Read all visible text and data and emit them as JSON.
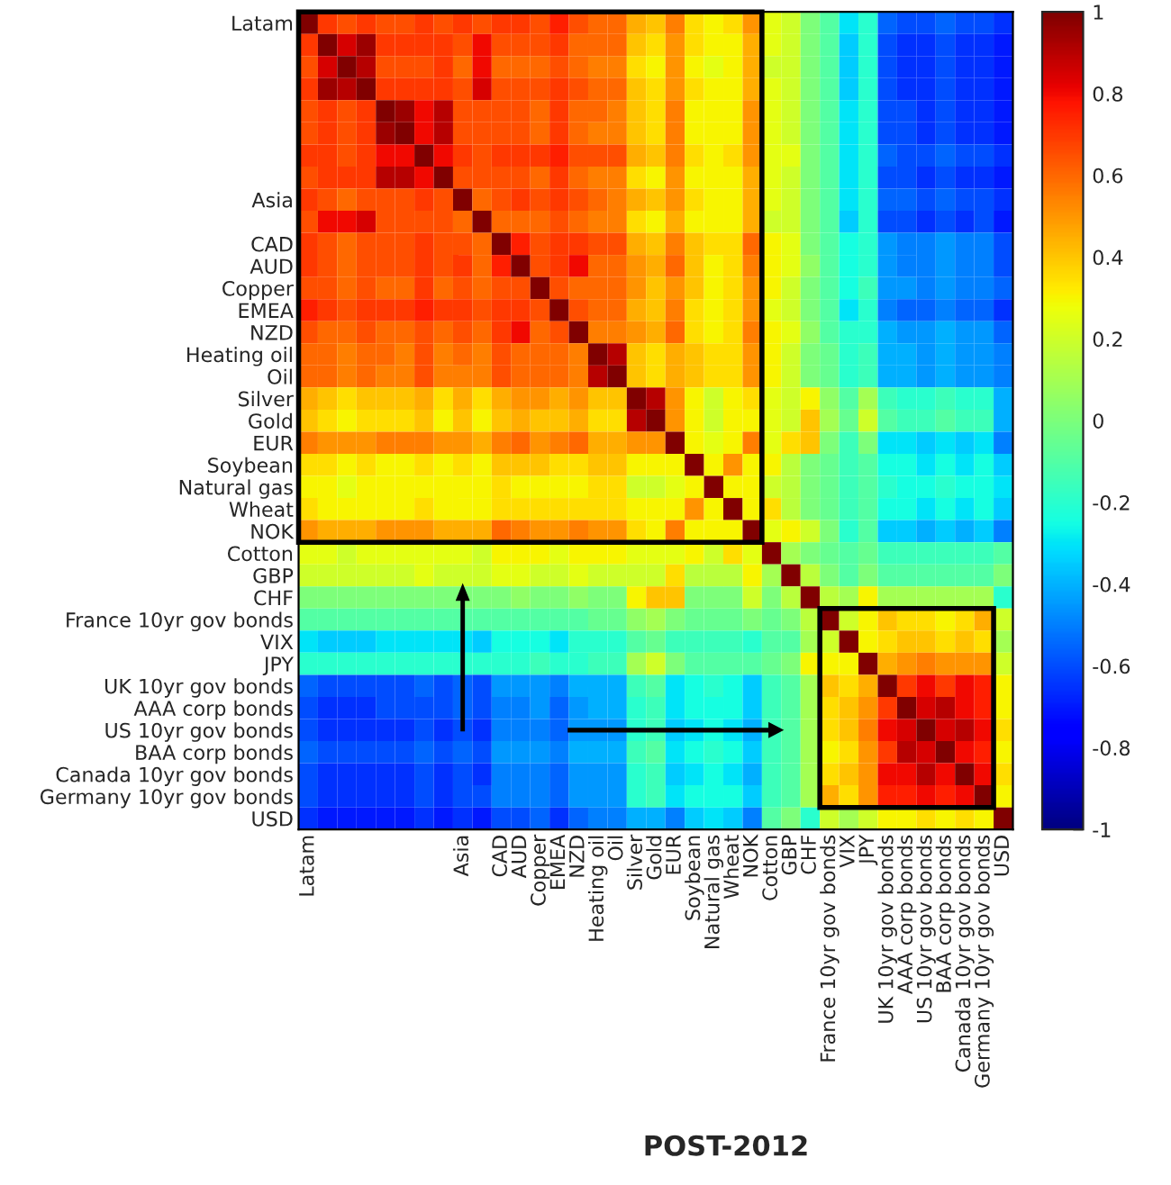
{
  "chart_data": {
    "type": "heatmap",
    "annotations": [
      "POST-2012"
    ],
    "categories": [
      "Latam",
      null,
      null,
      null,
      null,
      null,
      null,
      null,
      "Asia",
      null,
      "CAD",
      "AUD",
      "Copper",
      "EMEA",
      "NZD",
      "Heating oil",
      "Oil",
      "Silver",
      "Gold",
      "EUR",
      "Soybean",
      "Natural gas",
      "Wheat",
      "NOK",
      "Cotton",
      "GBP",
      "CHF",
      "France 10yr gov bonds",
      "VIX",
      "JPY",
      "UK 10yr gov bonds",
      "AAA corp bonds",
      "US 10yr gov bonds",
      "BAA corp bonds",
      "Canada 10yr gov bonds",
      "Germany 10yr gov bonds",
      "USD"
    ],
    "y_categories": [
      "Latam",
      null,
      null,
      null,
      null,
      null,
      null,
      null,
      "Asia",
      null,
      "CAD",
      "AUD",
      "Copper",
      "EMEA",
      "NZD",
      "Heating oil",
      "Oil",
      "Silver",
      "Gold",
      "EUR",
      "Soybean",
      "Natural gas",
      "Wheat",
      "NOK",
      "Cotton",
      "GBP",
      "CHF",
      "France 10yr gov bonds",
      "VIX",
      "JPY",
      "UK 10yr gov bonds",
      "AAA corp bonds",
      "US 10yr gov bonds",
      "BAA corp bonds",
      "Canada 10yr gov bonds",
      "Germany 10yr gov bonds",
      "USD"
    ],
    "clim": [
      -1,
      1
    ],
    "cticks": [
      -1,
      -0.8,
      -0.6,
      -0.4,
      -0.2,
      0,
      0.2,
      0.4,
      0.6,
      0.8,
      1
    ],
    "cells": [
      [
        1,
        0.7,
        0.65,
        0.7,
        0.65,
        0.65,
        0.7,
        0.65,
        0.7,
        0.65,
        0.7,
        0.7,
        0.65,
        0.75,
        0.65,
        0.6,
        0.6,
        0.45,
        0.4,
        0.55,
        0.35,
        0.3,
        0.35,
        0.5,
        0.25,
        0.2,
        0,
        -0.1,
        -0.3,
        -0.2,
        -0.55,
        -0.6,
        -0.6,
        -0.55,
        -0.6,
        -0.6,
        -0.65
      ],
      [
        0.7,
        1,
        0.85,
        0.95,
        0.7,
        0.7,
        0.7,
        0.7,
        0.65,
        0.8,
        0.65,
        0.65,
        0.65,
        0.7,
        0.6,
        0.6,
        0.6,
        0.4,
        0.35,
        0.5,
        0.35,
        0.3,
        0.3,
        0.45,
        0.25,
        0.2,
        0,
        -0.1,
        -0.35,
        -0.2,
        -0.6,
        -0.65,
        -0.65,
        -0.6,
        -0.65,
        -0.65,
        -0.7
      ],
      [
        0.65,
        0.85,
        1,
        0.9,
        0.65,
        0.65,
        0.65,
        0.7,
        0.6,
        0.8,
        0.6,
        0.6,
        0.6,
        0.65,
        0.6,
        0.55,
        0.55,
        0.35,
        0.3,
        0.5,
        0.3,
        0.25,
        0.3,
        0.45,
        0.2,
        0.2,
        0,
        -0.1,
        -0.35,
        -0.2,
        -0.6,
        -0.65,
        -0.65,
        -0.6,
        -0.65,
        -0.65,
        -0.7
      ],
      [
        0.7,
        0.95,
        0.9,
        1,
        0.7,
        0.7,
        0.7,
        0.7,
        0.65,
        0.85,
        0.65,
        0.65,
        0.65,
        0.7,
        0.65,
        0.6,
        0.6,
        0.4,
        0.35,
        0.5,
        0.35,
        0.3,
        0.3,
        0.45,
        0.25,
        0.2,
        0,
        -0.1,
        -0.35,
        -0.2,
        -0.6,
        -0.65,
        -0.65,
        -0.6,
        -0.65,
        -0.65,
        -0.7
      ],
      [
        0.65,
        0.7,
        0.65,
        0.7,
        1,
        0.95,
        0.8,
        0.9,
        0.65,
        0.65,
        0.65,
        0.65,
        0.6,
        0.7,
        0.6,
        0.6,
        0.55,
        0.4,
        0.35,
        0.55,
        0.3,
        0.3,
        0.3,
        0.5,
        0.25,
        0.2,
        0,
        -0.1,
        -0.3,
        -0.2,
        -0.6,
        -0.6,
        -0.65,
        -0.6,
        -0.65,
        -0.65,
        -0.7
      ],
      [
        0.65,
        0.7,
        0.65,
        0.7,
        0.95,
        1,
        0.8,
        0.9,
        0.65,
        0.65,
        0.65,
        0.65,
        0.6,
        0.7,
        0.6,
        0.55,
        0.55,
        0.4,
        0.35,
        0.55,
        0.3,
        0.3,
        0.3,
        0.5,
        0.25,
        0.2,
        0,
        -0.1,
        -0.3,
        -0.2,
        -0.6,
        -0.6,
        -0.65,
        -0.6,
        -0.65,
        -0.65,
        -0.7
      ],
      [
        0.7,
        0.7,
        0.65,
        0.7,
        0.8,
        0.8,
        1,
        0.8,
        0.7,
        0.65,
        0.7,
        0.7,
        0.7,
        0.75,
        0.65,
        0.65,
        0.65,
        0.45,
        0.4,
        0.55,
        0.35,
        0.3,
        0.35,
        0.5,
        0.25,
        0.25,
        0,
        -0.1,
        -0.3,
        -0.2,
        -0.55,
        -0.6,
        -0.6,
        -0.55,
        -0.6,
        -0.6,
        -0.65
      ],
      [
        0.65,
        0.7,
        0.7,
        0.7,
        0.9,
        0.9,
        0.8,
        1,
        0.65,
        0.65,
        0.65,
        0.65,
        0.6,
        0.7,
        0.6,
        0.55,
        0.55,
        0.35,
        0.3,
        0.5,
        0.3,
        0.3,
        0.3,
        0.45,
        0.25,
        0.2,
        0,
        -0.1,
        -0.3,
        -0.2,
        -0.6,
        -0.6,
        -0.65,
        -0.6,
        -0.65,
        -0.65,
        -0.7
      ],
      [
        0.7,
        0.65,
        0.6,
        0.65,
        0.65,
        0.65,
        0.7,
        0.65,
        1,
        0.6,
        0.65,
        0.7,
        0.65,
        0.7,
        0.65,
        0.6,
        0.55,
        0.45,
        0.4,
        0.5,
        0.35,
        0.3,
        0.3,
        0.45,
        0.25,
        0.2,
        0,
        -0.1,
        -0.3,
        -0.2,
        -0.55,
        -0.55,
        -0.6,
        -0.55,
        -0.6,
        -0.6,
        -0.65
      ],
      [
        0.65,
        0.8,
        0.8,
        0.85,
        0.65,
        0.65,
        0.65,
        0.65,
        0.6,
        1,
        0.6,
        0.6,
        0.6,
        0.65,
        0.6,
        0.55,
        0.55,
        0.35,
        0.3,
        0.45,
        0.3,
        0.3,
        0.3,
        0.45,
        0.2,
        0.2,
        0,
        -0.1,
        -0.35,
        -0.2,
        -0.6,
        -0.6,
        -0.65,
        -0.6,
        -0.65,
        -0.6,
        -0.7
      ],
      [
        0.7,
        0.65,
        0.6,
        0.65,
        0.65,
        0.65,
        0.7,
        0.65,
        0.65,
        0.6,
        1,
        0.75,
        0.65,
        0.7,
        0.7,
        0.65,
        0.65,
        0.45,
        0.4,
        0.55,
        0.4,
        0.35,
        0.35,
        0.6,
        0.3,
        0.25,
        0,
        -0.1,
        -0.25,
        -0.2,
        -0.45,
        -0.5,
        -0.5,
        -0.45,
        -0.5,
        -0.5,
        -0.6
      ],
      [
        0.7,
        0.65,
        0.6,
        0.65,
        0.65,
        0.65,
        0.7,
        0.65,
        0.7,
        0.6,
        0.75,
        1,
        0.65,
        0.7,
        0.8,
        0.6,
        0.6,
        0.5,
        0.45,
        0.6,
        0.4,
        0.3,
        0.35,
        0.55,
        0.3,
        0.25,
        0.05,
        -0.1,
        -0.25,
        -0.2,
        -0.45,
        -0.5,
        -0.5,
        -0.45,
        -0.5,
        -0.5,
        -0.6
      ],
      [
        0.65,
        0.65,
        0.6,
        0.65,
        0.6,
        0.6,
        0.7,
        0.6,
        0.65,
        0.6,
        0.65,
        0.65,
        1,
        0.65,
        0.6,
        0.6,
        0.6,
        0.5,
        0.4,
        0.5,
        0.4,
        0.3,
        0.35,
        0.5,
        0.3,
        0.2,
        0,
        -0.1,
        -0.25,
        -0.15,
        -0.45,
        -0.45,
        -0.5,
        -0.45,
        -0.5,
        -0.5,
        -0.55
      ],
      [
        0.75,
        0.7,
        0.65,
        0.7,
        0.7,
        0.7,
        0.75,
        0.7,
        0.7,
        0.65,
        0.7,
        0.7,
        0.65,
        1,
        0.65,
        0.6,
        0.6,
        0.45,
        0.4,
        0.55,
        0.35,
        0.3,
        0.35,
        0.5,
        0.25,
        0.2,
        0,
        -0.1,
        -0.3,
        -0.2,
        -0.5,
        -0.55,
        -0.55,
        -0.5,
        -0.55,
        -0.55,
        -0.65
      ],
      [
        0.65,
        0.6,
        0.6,
        0.65,
        0.6,
        0.6,
        0.65,
        0.6,
        0.65,
        0.6,
        0.7,
        0.8,
        0.6,
        0.65,
        1,
        0.55,
        0.55,
        0.5,
        0.45,
        0.6,
        0.35,
        0.3,
        0.35,
        0.55,
        0.3,
        0.25,
        0.05,
        -0.1,
        -0.2,
        -0.2,
        -0.4,
        -0.45,
        -0.45,
        -0.4,
        -0.45,
        -0.45,
        -0.55
      ],
      [
        0.6,
        0.6,
        0.55,
        0.6,
        0.6,
        0.55,
        0.65,
        0.55,
        0.6,
        0.55,
        0.65,
        0.6,
        0.6,
        0.6,
        0.55,
        1,
        0.9,
        0.4,
        0.35,
        0.45,
        0.4,
        0.35,
        0.35,
        0.5,
        0.3,
        0.2,
        0,
        -0.05,
        -0.2,
        -0.15,
        -0.4,
        -0.4,
        -0.45,
        -0.4,
        -0.45,
        -0.45,
        -0.5
      ],
      [
        0.6,
        0.6,
        0.55,
        0.6,
        0.55,
        0.55,
        0.65,
        0.55,
        0.55,
        0.55,
        0.65,
        0.6,
        0.6,
        0.6,
        0.55,
        0.9,
        1,
        0.4,
        0.35,
        0.45,
        0.4,
        0.35,
        0.35,
        0.5,
        0.3,
        0.2,
        0,
        -0.05,
        -0.2,
        -0.15,
        -0.4,
        -0.4,
        -0.45,
        -0.4,
        -0.45,
        -0.45,
        -0.5
      ],
      [
        0.45,
        0.4,
        0.35,
        0.4,
        0.4,
        0.4,
        0.45,
        0.35,
        0.45,
        0.35,
        0.45,
        0.5,
        0.5,
        0.45,
        0.5,
        0.4,
        0.4,
        1,
        0.9,
        0.5,
        0.3,
        0.2,
        0.3,
        0.35,
        0.25,
        0.2,
        0.3,
        0.05,
        -0.1,
        0.1,
        -0.15,
        -0.2,
        -0.2,
        -0.15,
        -0.2,
        -0.2,
        -0.4
      ],
      [
        0.4,
        0.35,
        0.3,
        0.35,
        0.35,
        0.35,
        0.4,
        0.3,
        0.4,
        0.3,
        0.4,
        0.45,
        0.4,
        0.4,
        0.45,
        0.35,
        0.35,
        0.9,
        1,
        0.5,
        0.3,
        0.2,
        0.3,
        0.3,
        0.25,
        0.2,
        0.4,
        0.1,
        -0.05,
        0.2,
        -0.1,
        -0.15,
        -0.15,
        -0.1,
        -0.15,
        -0.15,
        -0.4
      ],
      [
        0.55,
        0.5,
        0.5,
        0.5,
        0.55,
        0.55,
        0.55,
        0.5,
        0.5,
        0.45,
        0.55,
        0.6,
        0.5,
        0.55,
        0.6,
        0.45,
        0.45,
        0.5,
        0.5,
        1,
        0.3,
        0.25,
        0.3,
        0.55,
        0.25,
        0.35,
        0.4,
        0,
        -0.15,
        0,
        -0.3,
        -0.3,
        -0.35,
        -0.3,
        -0.35,
        -0.3,
        -0.5
      ],
      [
        0.35,
        0.35,
        0.3,
        0.35,
        0.3,
        0.3,
        0.35,
        0.3,
        0.35,
        0.3,
        0.4,
        0.4,
        0.4,
        0.35,
        0.35,
        0.4,
        0.4,
        0.3,
        0.3,
        0.3,
        1,
        0.3,
        0.5,
        0.3,
        0.3,
        0.15,
        0,
        -0.05,
        -0.15,
        -0.1,
        -0.25,
        -0.25,
        -0.3,
        -0.25,
        -0.3,
        -0.25,
        -0.35
      ],
      [
        0.3,
        0.3,
        0.25,
        0.3,
        0.3,
        0.3,
        0.3,
        0.3,
        0.3,
        0.3,
        0.35,
        0.3,
        0.3,
        0.3,
        0.3,
        0.35,
        0.35,
        0.2,
        0.2,
        0.25,
        0.3,
        1,
        0.3,
        0.3,
        0.2,
        0.15,
        0,
        -0.05,
        -0.15,
        -0.1,
        -0.2,
        -0.25,
        -0.25,
        -0.2,
        -0.25,
        -0.25,
        -0.3
      ],
      [
        0.35,
        0.3,
        0.3,
        0.3,
        0.3,
        0.3,
        0.35,
        0.3,
        0.3,
        0.3,
        0.35,
        0.35,
        0.35,
        0.35,
        0.35,
        0.35,
        0.35,
        0.3,
        0.3,
        0.3,
        0.5,
        0.3,
        1,
        0.3,
        0.35,
        0.15,
        0,
        -0.05,
        -0.15,
        -0.1,
        -0.25,
        -0.25,
        -0.3,
        -0.25,
        -0.3,
        -0.25,
        -0.35
      ],
      [
        0.5,
        0.45,
        0.45,
        0.45,
        0.5,
        0.5,
        0.5,
        0.45,
        0.45,
        0.45,
        0.6,
        0.55,
        0.5,
        0.5,
        0.55,
        0.5,
        0.5,
        0.35,
        0.3,
        0.55,
        0.3,
        0.3,
        0.3,
        1,
        0.25,
        0.3,
        0.2,
        0,
        -0.2,
        -0.1,
        -0.35,
        -0.35,
        -0.4,
        -0.35,
        -0.4,
        -0.35,
        -0.5
      ],
      [
        0.25,
        0.25,
        0.2,
        0.25,
        0.25,
        0.25,
        0.25,
        0.25,
        0.25,
        0.2,
        0.3,
        0.3,
        0.3,
        0.25,
        0.3,
        0.3,
        0.3,
        0.25,
        0.25,
        0.25,
        0.3,
        0.2,
        0.35,
        0.25,
        1,
        0.1,
        0,
        -0.05,
        -0.1,
        -0.05,
        -0.15,
        -0.15,
        -0.15,
        -0.15,
        -0.15,
        -0.15,
        -0.1
      ],
      [
        0.2,
        0.2,
        0.2,
        0.2,
        0.2,
        0.2,
        0.25,
        0.2,
        0.2,
        0.2,
        0.25,
        0.25,
        0.2,
        0.2,
        0.25,
        0.2,
        0.2,
        0.2,
        0.2,
        0.35,
        0.15,
        0.15,
        0.15,
        0.3,
        0.1,
        1,
        0.15,
        0,
        -0.1,
        0,
        -0.1,
        -0.1,
        -0.1,
        -0.1,
        -0.1,
        -0.1,
        0
      ],
      [
        0,
        0,
        0,
        0,
        0,
        0,
        0,
        0,
        0,
        0,
        0,
        0.05,
        0,
        0,
        0.05,
        0,
        0,
        0.3,
        0.4,
        0.4,
        0,
        0,
        0,
        0.2,
        0,
        0.15,
        1,
        0.15,
        0.1,
        0.3,
        0.1,
        0.1,
        0.1,
        0.1,
        0.1,
        0.1,
        -0.2
      ],
      [
        -0.1,
        -0.1,
        -0.1,
        -0.1,
        -0.1,
        -0.1,
        -0.1,
        -0.1,
        -0.1,
        -0.1,
        -0.1,
        -0.1,
        -0.1,
        -0.1,
        -0.1,
        -0.05,
        -0.05,
        0.05,
        0.1,
        0,
        -0.05,
        -0.05,
        -0.05,
        0,
        -0.05,
        0,
        0.15,
        1,
        0.2,
        0.3,
        0.4,
        0.35,
        0.35,
        0.3,
        0.35,
        0.45,
        0.2
      ],
      [
        -0.3,
        -0.35,
        -0.35,
        -0.35,
        -0.3,
        -0.3,
        -0.3,
        -0.3,
        -0.3,
        -0.35,
        -0.25,
        -0.25,
        -0.25,
        -0.3,
        -0.2,
        -0.2,
        -0.2,
        -0.1,
        -0.05,
        -0.15,
        -0.15,
        -0.15,
        -0.15,
        -0.2,
        -0.1,
        -0.1,
        0.1,
        0.2,
        1,
        0.3,
        0.35,
        0.4,
        0.4,
        0.35,
        0.4,
        0.35,
        0.1
      ],
      [
        -0.2,
        -0.2,
        -0.2,
        -0.2,
        -0.2,
        -0.2,
        -0.2,
        -0.2,
        -0.2,
        -0.2,
        -0.2,
        -0.2,
        -0.15,
        -0.2,
        -0.2,
        -0.15,
        -0.15,
        0.1,
        0.2,
        0,
        -0.1,
        -0.1,
        -0.1,
        -0.1,
        -0.05,
        0,
        0.3,
        0.3,
        0.3,
        1,
        0.45,
        0.5,
        0.55,
        0.5,
        0.5,
        0.5,
        0.2
      ],
      [
        -0.55,
        -0.6,
        -0.6,
        -0.6,
        -0.6,
        -0.6,
        -0.55,
        -0.6,
        -0.55,
        -0.6,
        -0.45,
        -0.45,
        -0.45,
        -0.5,
        -0.4,
        -0.4,
        -0.4,
        -0.15,
        -0.1,
        -0.3,
        -0.25,
        -0.2,
        -0.25,
        -0.35,
        -0.15,
        -0.1,
        0.1,
        0.4,
        0.35,
        0.45,
        1,
        0.7,
        0.8,
        0.7,
        0.8,
        0.75,
        0.3
      ],
      [
        -0.6,
        -0.65,
        -0.65,
        -0.65,
        -0.6,
        -0.6,
        -0.6,
        -0.6,
        -0.55,
        -0.6,
        -0.5,
        -0.5,
        -0.45,
        -0.55,
        -0.45,
        -0.4,
        -0.4,
        -0.2,
        -0.15,
        -0.3,
        -0.25,
        -0.25,
        -0.25,
        -0.35,
        -0.15,
        -0.1,
        0.1,
        0.35,
        0.4,
        0.5,
        0.7,
        1,
        0.85,
        0.9,
        0.8,
        0.75,
        0.3
      ],
      [
        -0.6,
        -0.65,
        -0.65,
        -0.65,
        -0.65,
        -0.65,
        -0.6,
        -0.65,
        -0.6,
        -0.65,
        -0.5,
        -0.5,
        -0.5,
        -0.55,
        -0.45,
        -0.45,
        -0.45,
        -0.2,
        -0.15,
        -0.35,
        -0.3,
        -0.25,
        -0.3,
        -0.4,
        -0.15,
        -0.1,
        0.1,
        0.35,
        0.4,
        0.55,
        0.8,
        0.85,
        1,
        0.85,
        0.9,
        0.8,
        0.35
      ],
      [
        -0.55,
        -0.6,
        -0.6,
        -0.6,
        -0.6,
        -0.6,
        -0.55,
        -0.6,
        -0.55,
        -0.6,
        -0.45,
        -0.45,
        -0.45,
        -0.5,
        -0.4,
        -0.4,
        -0.4,
        -0.15,
        -0.1,
        -0.3,
        -0.25,
        -0.2,
        -0.25,
        -0.35,
        -0.15,
        -0.1,
        0.1,
        0.3,
        0.35,
        0.5,
        0.7,
        0.9,
        0.85,
        1,
        0.8,
        0.75,
        0.3
      ],
      [
        -0.6,
        -0.65,
        -0.65,
        -0.65,
        -0.65,
        -0.65,
        -0.6,
        -0.65,
        -0.6,
        -0.65,
        -0.5,
        -0.5,
        -0.5,
        -0.55,
        -0.45,
        -0.45,
        -0.45,
        -0.2,
        -0.15,
        -0.35,
        -0.3,
        -0.25,
        -0.3,
        -0.4,
        -0.15,
        -0.1,
        0.1,
        0.35,
        0.4,
        0.5,
        0.8,
        0.8,
        0.9,
        0.8,
        1,
        0.8,
        0.35
      ],
      [
        -0.6,
        -0.65,
        -0.65,
        -0.65,
        -0.65,
        -0.65,
        -0.6,
        -0.65,
        -0.6,
        -0.6,
        -0.5,
        -0.5,
        -0.5,
        -0.55,
        -0.45,
        -0.45,
        -0.45,
        -0.2,
        -0.15,
        -0.3,
        -0.25,
        -0.25,
        -0.25,
        -0.35,
        -0.15,
        -0.1,
        0.1,
        0.45,
        0.35,
        0.5,
        0.75,
        0.75,
        0.8,
        0.75,
        0.8,
        1,
        0.3
      ],
      [
        -0.65,
        -0.7,
        -0.7,
        -0.7,
        -0.7,
        -0.7,
        -0.65,
        -0.7,
        -0.65,
        -0.7,
        -0.6,
        -0.6,
        -0.55,
        -0.65,
        -0.55,
        -0.5,
        -0.5,
        -0.4,
        -0.4,
        -0.5,
        -0.35,
        -0.3,
        -0.35,
        -0.5,
        -0.1,
        0,
        -0.2,
        0.2,
        0.1,
        0.2,
        0.3,
        0.3,
        0.35,
        0.3,
        0.35,
        0.3,
        1
      ]
    ]
  }
}
